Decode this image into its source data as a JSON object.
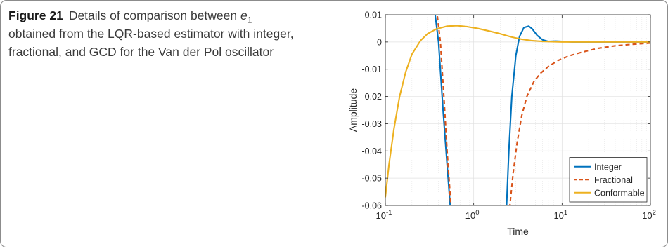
{
  "caption": {
    "figure_label": "Figure 21",
    "text_before": "Details of comparison between ",
    "var_base": "e",
    "var_sub": "1",
    "text_after": "obtained from the LQR-based estimator with integer, fractional, and GCD for the Van der Pol oscillator"
  },
  "colors": {
    "integer": "#0072BD",
    "fractional": "#D95319",
    "conformable": "#EDB120"
  },
  "chart_data": {
    "type": "line",
    "title": "",
    "xlabel": "Time",
    "ylabel": "Amplitude",
    "xscale": "log",
    "xlim": [
      0.1,
      100
    ],
    "ylim": [
      -0.06,
      0.01
    ],
    "grid": true,
    "legend_position": "bottom-right",
    "x_ticks": [
      {
        "value": 0.1,
        "base": "10",
        "exp": "-1"
      },
      {
        "value": 1,
        "base": "10",
        "exp": "0"
      },
      {
        "value": 10,
        "base": "10",
        "exp": "1"
      },
      {
        "value": 100,
        "base": "10",
        "exp": "2"
      }
    ],
    "y_ticks": [
      {
        "value": 0.01,
        "label": "0.01"
      },
      {
        "value": 0,
        "label": "0"
      },
      {
        "value": -0.01,
        "label": "-0.01"
      },
      {
        "value": -0.02,
        "label": "-0.02"
      },
      {
        "value": -0.03,
        "label": "-0.03"
      },
      {
        "value": -0.04,
        "label": "-0.04"
      },
      {
        "value": -0.05,
        "label": "-0.05"
      },
      {
        "value": -0.06,
        "label": "-0.06"
      }
    ],
    "series": [
      {
        "name": "Integer",
        "color": "#0072BD",
        "dash": "solid",
        "segments": [
          [
            [
              0.36,
              0.012
            ],
            [
              0.4,
              0.0
            ],
            [
              0.45,
              -0.025
            ],
            [
              0.5,
              -0.045
            ],
            [
              0.545,
              -0.061
            ]
          ],
          [
            [
              2.35,
              -0.061
            ],
            [
              2.5,
              -0.04
            ],
            [
              2.7,
              -0.02
            ],
            [
              3.0,
              -0.005
            ],
            [
              3.3,
              0.002
            ],
            [
              3.7,
              0.0053
            ],
            [
              4.2,
              0.0058
            ],
            [
              4.6,
              0.0048
            ],
            [
              5.2,
              0.0025
            ],
            [
              6.0,
              0.0008
            ],
            [
              7.0,
              0.0002
            ],
            [
              8.5,
              0.0003
            ],
            [
              10,
              0.0002
            ],
            [
              13,
              0.0
            ],
            [
              20,
              0.0
            ],
            [
              40,
              0.0
            ],
            [
              100,
              0.0
            ]
          ]
        ]
      },
      {
        "name": "Fractional",
        "color": "#D95319",
        "dash": "dashed",
        "segments": [
          [
            [
              0.38,
              0.012
            ],
            [
              0.42,
              0.0
            ],
            [
              0.46,
              -0.02
            ],
            [
              0.5,
              -0.04
            ],
            [
              0.555,
              -0.061
            ]
          ],
          [
            [
              2.55,
              -0.061
            ],
            [
              2.8,
              -0.048
            ],
            [
              3.1,
              -0.037
            ],
            [
              3.5,
              -0.027
            ],
            [
              4.0,
              -0.02
            ],
            [
              4.8,
              -0.0145
            ],
            [
              5.7,
              -0.0115
            ],
            [
              7.0,
              -0.009
            ],
            [
              9.0,
              -0.0068
            ],
            [
              12,
              -0.0051
            ],
            [
              17,
              -0.0037
            ],
            [
              25,
              -0.0024
            ],
            [
              40,
              -0.0014
            ],
            [
              60,
              -0.0009
            ],
            [
              100,
              -0.0004
            ]
          ]
        ]
      },
      {
        "name": "Conformable",
        "color": "#EDB120",
        "dash": "solid",
        "segments": [
          [
            [
              0.1,
              -0.057
            ],
            [
              0.11,
              -0.045
            ],
            [
              0.125,
              -0.032
            ],
            [
              0.145,
              -0.02
            ],
            [
              0.17,
              -0.011
            ],
            [
              0.2,
              -0.0045
            ],
            [
              0.25,
              0.0005
            ],
            [
              0.3,
              0.003
            ],
            [
              0.38,
              0.0048
            ],
            [
              0.5,
              0.0058
            ],
            [
              0.65,
              0.006
            ],
            [
              0.85,
              0.0056
            ],
            [
              1.1,
              0.005
            ],
            [
              1.5,
              0.004
            ],
            [
              2.0,
              0.003
            ],
            [
              2.7,
              0.0018
            ],
            [
              3.5,
              0.001
            ],
            [
              4.5,
              0.0005
            ],
            [
              6.0,
              0.0002
            ],
            [
              10,
              0.0
            ],
            [
              30,
              0.0
            ],
            [
              100,
              0.0
            ]
          ]
        ]
      }
    ]
  }
}
